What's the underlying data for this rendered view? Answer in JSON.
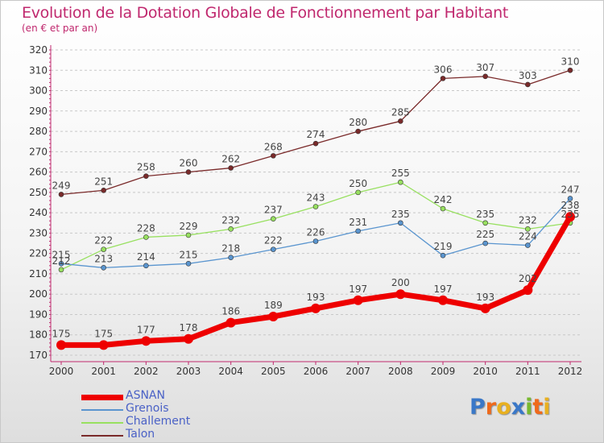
{
  "header": {
    "title": "Evolution de la Dotation Globale de Fonctionnement par Habitant",
    "subtitle": "(en € et par an)"
  },
  "logo": {
    "text": "Proxiti"
  },
  "colors": {
    "title": "#c0286e",
    "axis": "#c0286e",
    "grid": "#c8c8c8",
    "legend_text": "#4a61c6"
  },
  "chart_data": {
    "type": "line",
    "title": "Evolution de la Dotation Globale de Fonctionnement par Habitant",
    "subtitle": "(en € et par an)",
    "xlabel": "",
    "ylabel": "",
    "x": [
      "2000",
      "2001",
      "2002",
      "2003",
      "2004",
      "2005",
      "2006",
      "2007",
      "2008",
      "2009",
      "2010",
      "2011",
      "2012"
    ],
    "ylim": [
      170,
      320
    ],
    "yticks": [
      170,
      180,
      190,
      200,
      210,
      220,
      230,
      240,
      250,
      260,
      270,
      280,
      290,
      300,
      310,
      320
    ],
    "grid": "horizontal, dashed",
    "legend_position": "bottom-left",
    "series": [
      {
        "name": "Talon",
        "color": "#7a2a2a",
        "values": [
          249,
          251,
          258,
          260,
          262,
          268,
          274,
          280,
          285,
          306,
          307,
          303,
          310
        ]
      },
      {
        "name": "Challement",
        "color": "#98e060",
        "values": [
          212,
          222,
          228,
          229,
          232,
          237,
          243,
          250,
          255,
          242,
          235,
          232,
          235
        ]
      },
      {
        "name": "Grenois",
        "color": "#5a95cf",
        "values": [
          215,
          213,
          214,
          215,
          218,
          222,
          226,
          231,
          235,
          219,
          225,
          224,
          247
        ]
      },
      {
        "name": "ASNAN",
        "color": "#ee0000",
        "values": [
          175,
          175,
          177,
          178,
          186,
          189,
          193,
          197,
          200,
          197,
          193,
          202,
          238
        ]
      }
    ],
    "legend": [
      "ASNAN",
      "Grenois",
      "Challement",
      "Talon"
    ]
  }
}
